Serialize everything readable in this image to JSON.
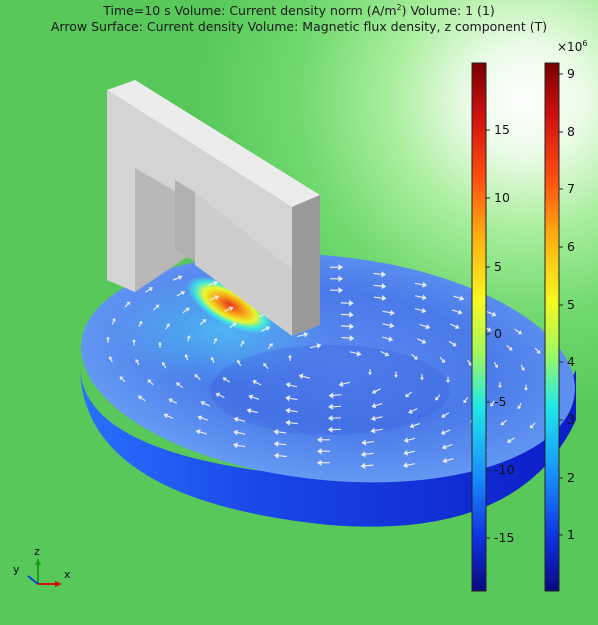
{
  "header": {
    "line1_prefix": "Time=10 s   Volume: Current density norm (A/m",
    "line1_sup": "2",
    "line1_suffix": ")  Volume: 1 (1)",
    "line2": "Arrow Surface: Current density  Volume: Magnetic flux density, z component (T)"
  },
  "colorbar_left": {
    "ticks": [
      "15",
      "10",
      "5",
      "0",
      "-5",
      "-10",
      "-15"
    ]
  },
  "colorbar_right": {
    "exponent_base": "×10",
    "exponent_power": "6",
    "ticks": [
      "9",
      "8",
      "7",
      "6",
      "5",
      "4",
      "3",
      "2",
      "1"
    ]
  },
  "axes_triad": {
    "x": "x",
    "y": "y",
    "z": "z"
  },
  "colors": {
    "background": "#6fd86e",
    "magnet": "#d6d6d6",
    "disk_low": "#1030d8",
    "disk_high": "#e83020"
  }
}
